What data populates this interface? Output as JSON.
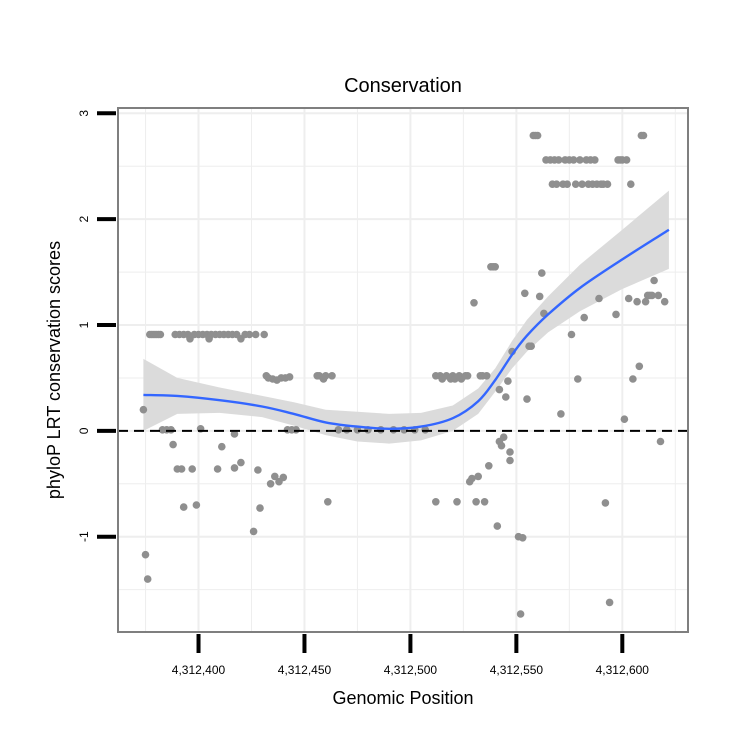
{
  "chart_data": {
    "type": "scatter",
    "title": "Conservation",
    "xlabel": "Genomic Position",
    "ylabel": "phyloP LRT conservation scores",
    "xlim": [
      4312362,
      4312631
    ],
    "ylim": [
      -1.9,
      3.05
    ],
    "xticks": [
      4312400,
      4312450,
      4312500,
      4312550,
      4312600
    ],
    "xtick_labels": [
      "4,312,400",
      "4,312,450",
      "4,312,500",
      "4,312,550",
      "4,312,600"
    ],
    "yticks": [
      -1,
      0,
      1,
      2,
      3
    ],
    "ytick_labels": [
      "-1",
      "0",
      "1",
      "2",
      "3"
    ],
    "reference_line": {
      "y": 0,
      "style": "dashed"
    },
    "grid": true,
    "colors": {
      "points": "#8f8f8f",
      "smooth": "#3366ff",
      "band": "#d9d9d9",
      "panel_border": "#7f7f7f",
      "grid": "#eeeeee"
    },
    "points": [
      [
        4312374,
        0.2
      ],
      [
        4312375,
        -1.17
      ],
      [
        4312376,
        -1.4
      ],
      [
        4312377,
        0.91
      ],
      [
        4312378,
        0.91
      ],
      [
        4312379,
        0.91
      ],
      [
        4312380,
        0.91
      ],
      [
        4312381,
        0.91
      ],
      [
        4312382,
        0.91
      ],
      [
        4312383,
        0.01
      ],
      [
        4312385,
        0.01
      ],
      [
        4312387,
        0.01
      ],
      [
        4312388,
        -0.13
      ],
      [
        4312389,
        0.91
      ],
      [
        4312391,
        0.91
      ],
      [
        4312390,
        -0.36
      ],
      [
        4312392,
        -0.36
      ],
      [
        4312393,
        0.91
      ],
      [
        4312393,
        -0.72
      ],
      [
        4312395,
        0.91
      ],
      [
        4312396,
        0.87
      ],
      [
        4312397,
        -0.36
      ],
      [
        4312398,
        0.91
      ],
      [
        4312399,
        -0.7
      ],
      [
        4312400,
        0.91
      ],
      [
        4312401,
        0.02
      ],
      [
        4312402,
        0.91
      ],
      [
        4312404,
        0.91
      ],
      [
        4312405,
        0.87
      ],
      [
        4312406,
        0.91
      ],
      [
        4312408,
        0.91
      ],
      [
        4312409,
        -0.36
      ],
      [
        4312410,
        0.91
      ],
      [
        4312411,
        -0.15
      ],
      [
        4312412,
        0.91
      ],
      [
        4312414,
        0.91
      ],
      [
        4312416,
        0.91
      ],
      [
        4312417,
        -0.03
      ],
      [
        4312417,
        -0.35
      ],
      [
        4312418,
        0.91
      ],
      [
        4312420,
        0.87
      ],
      [
        4312420,
        -0.3
      ],
      [
        4312422,
        0.91
      ],
      [
        4312424,
        0.91
      ],
      [
        4312426,
        -0.95
      ],
      [
        4312427,
        0.91
      ],
      [
        4312428,
        -0.37
      ],
      [
        4312429,
        -0.73
      ],
      [
        4312431,
        0.91
      ],
      [
        4312432,
        0.52
      ],
      [
        4312433,
        0.5
      ],
      [
        4312434,
        -0.5
      ],
      [
        4312435,
        0.49
      ],
      [
        4312436,
        -0.43
      ],
      [
        4312437,
        0.48
      ],
      [
        4312438,
        -0.48
      ],
      [
        4312439,
        0.5
      ],
      [
        4312440,
        -0.44
      ],
      [
        4312441,
        0.5
      ],
      [
        4312442,
        0.01
      ],
      [
        4312443,
        0.51
      ],
      [
        4312444,
        0.01
      ],
      [
        4312446,
        0.01
      ],
      [
        4312456,
        0.52
      ],
      [
        4312457,
        0.52
      ],
      [
        4312459,
        0.49
      ],
      [
        4312460,
        0.52
      ],
      [
        4312461,
        -0.67
      ],
      [
        4312463,
        0.52
      ],
      [
        4312466,
        0.01
      ],
      [
        4312470,
        0.01
      ],
      [
        4312475,
        0.01
      ],
      [
        4312480,
        0.01
      ],
      [
        4312486,
        0.01
      ],
      [
        4312492,
        0.01
      ],
      [
        4312497,
        0.01
      ],
      [
        4312502,
        0.01
      ],
      [
        4312507,
        0.01
      ],
      [
        4312512,
        0.52
      ],
      [
        4312512,
        -0.67
      ],
      [
        4312514,
        0.52
      ],
      [
        4312515,
        0.49
      ],
      [
        4312517,
        0.52
      ],
      [
        4312519,
        0.49
      ],
      [
        4312520,
        0.52
      ],
      [
        4312521,
        0.49
      ],
      [
        4312522,
        -0.67
      ],
      [
        4312523,
        0.52
      ],
      [
        4312524,
        0.49
      ],
      [
        4312526,
        0.52
      ],
      [
        4312527,
        0.52
      ],
      [
        4312528,
        -0.48
      ],
      [
        4312529,
        -0.45
      ],
      [
        4312530,
        1.21
      ],
      [
        4312531,
        -0.67
      ],
      [
        4312532,
        -0.43
      ],
      [
        4312533,
        0.52
      ],
      [
        4312534,
        0.52
      ],
      [
        4312535,
        -0.67
      ],
      [
        4312536,
        0.52
      ],
      [
        4312537,
        -0.33
      ],
      [
        4312538,
        1.55
      ],
      [
        4312539,
        1.55
      ],
      [
        4312540,
        1.55
      ],
      [
        4312541,
        -0.9
      ],
      [
        4312542,
        -0.1
      ],
      [
        4312542,
        0.39
      ],
      [
        4312543,
        -0.14
      ],
      [
        4312544,
        -0.06
      ],
      [
        4312545,
        0.32
      ],
      [
        4312546,
        0.47
      ],
      [
        4312547,
        -0.28
      ],
      [
        4312547,
        -0.2
      ],
      [
        4312548,
        0.75
      ],
      [
        4312551,
        -1.0
      ],
      [
        4312552,
        -1.73
      ],
      [
        4312553,
        -1.01
      ],
      [
        4312554,
        1.3
      ],
      [
        4312555,
        0.3
      ],
      [
        4312556,
        0.8
      ],
      [
        4312557,
        0.8
      ],
      [
        4312558,
        2.79
      ],
      [
        4312559,
        2.79
      ],
      [
        4312560,
        2.79
      ],
      [
        4312561,
        1.27
      ],
      [
        4312562,
        1.49
      ],
      [
        4312563,
        1.11
      ],
      [
        4312564,
        2.56
      ],
      [
        4312566,
        2.56
      ],
      [
        4312567,
        2.33
      ],
      [
        4312568,
        2.56
      ],
      [
        4312569,
        2.33
      ],
      [
        4312570,
        2.56
      ],
      [
        4312571,
        0.16
      ],
      [
        4312572,
        2.33
      ],
      [
        4312573,
        2.56
      ],
      [
        4312574,
        2.33
      ],
      [
        4312575,
        2.56
      ],
      [
        4312576,
        0.91
      ],
      [
        4312577,
        2.56
      ],
      [
        4312578,
        2.33
      ],
      [
        4312579,
        0.49
      ],
      [
        4312580,
        2.56
      ],
      [
        4312581,
        2.33
      ],
      [
        4312582,
        1.07
      ],
      [
        4312583,
        2.56
      ],
      [
        4312584,
        2.33
      ],
      [
        4312585,
        2.56
      ],
      [
        4312586,
        2.33
      ],
      [
        4312587,
        2.56
      ],
      [
        4312588,
        2.33
      ],
      [
        4312589,
        1.25
      ],
      [
        4312590,
        2.33
      ],
      [
        4312591,
        2.33
      ],
      [
        4312592,
        -0.68
      ],
      [
        4312593,
        2.33
      ],
      [
        4312594,
        -1.62
      ],
      [
        4312597,
        1.1
      ],
      [
        4312598,
        2.56
      ],
      [
        4312599,
        2.56
      ],
      [
        4312600,
        2.56
      ],
      [
        4312601,
        0.11
      ],
      [
        4312602,
        2.56
      ],
      [
        4312603,
        1.25
      ],
      [
        4312604,
        2.33
      ],
      [
        4312605,
        0.49
      ],
      [
        4312607,
        1.22
      ],
      [
        4312608,
        0.61
      ],
      [
        4312609,
        2.79
      ],
      [
        4312610,
        2.79
      ],
      [
        4312611,
        1.22
      ],
      [
        4312612,
        1.28
      ],
      [
        4312613,
        1.28
      ],
      [
        4312614,
        1.28
      ],
      [
        4312615,
        1.42
      ],
      [
        4312617,
        1.28
      ],
      [
        4312618,
        -0.1
      ],
      [
        4312620,
        1.22
      ]
    ],
    "smooth": {
      "x": [
        4312374,
        4312390,
        4312410,
        4312430,
        4312445,
        4312460,
        4312475,
        4312490,
        4312505,
        4312520,
        4312532,
        4312540,
        4312548,
        4312555,
        4312565,
        4312580,
        4312600,
        4312622
      ],
      "y": [
        0.34,
        0.33,
        0.29,
        0.23,
        0.16,
        0.08,
        0.04,
        0.02,
        0.04,
        0.12,
        0.28,
        0.48,
        0.72,
        0.9,
        1.1,
        1.35,
        1.62,
        1.9
      ],
      "lower": [
        -0.0,
        0.16,
        0.17,
        0.13,
        0.05,
        -0.04,
        -0.1,
        -0.12,
        -0.09,
        0.0,
        0.16,
        0.37,
        0.59,
        0.75,
        0.93,
        1.13,
        1.34,
        1.53
      ],
      "upper": [
        0.68,
        0.5,
        0.41,
        0.33,
        0.27,
        0.2,
        0.18,
        0.16,
        0.17,
        0.24,
        0.4,
        0.59,
        0.85,
        1.05,
        1.27,
        1.57,
        1.9,
        2.27
      ]
    }
  }
}
